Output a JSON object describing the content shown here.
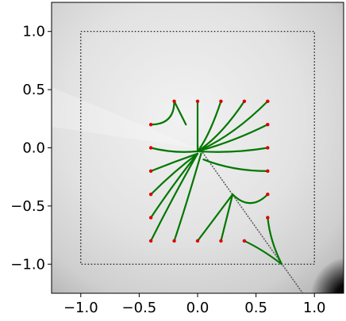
{
  "chart_data": {
    "type": "line",
    "title": "",
    "xlabel": "",
    "ylabel": "",
    "xlim": [
      -1.25,
      1.25
    ],
    "ylim": [
      -1.25,
      1.25
    ],
    "x_ticks": [
      -1.0,
      -0.5,
      0.0,
      0.5,
      1.0
    ],
    "y_ticks": [
      1.0,
      0.5,
      0.0,
      -0.5,
      -1.0
    ],
    "x_tick_labels": [
      "−1.0",
      "−0.5",
      "0.0",
      "0.5",
      "1.0"
    ],
    "y_tick_labels": [
      "1.0",
      "0.5",
      "0.0",
      "−0.5",
      "−1.0"
    ],
    "grid": false,
    "background": "grayscale field (white center fading to black at lower-right)",
    "boundary_box": {
      "x": [
        -1.0,
        1.0
      ],
      "y": [
        -1.0,
        1.0
      ],
      "style": "dotted",
      "color": "#000000"
    },
    "boundary_line": {
      "points": [
        [
          0.0,
          0.02
        ],
        [
          0.9,
          -1.25
        ]
      ],
      "style": "dashed",
      "color": "#555555"
    },
    "start_color": "#dd0000",
    "path_color": "#007700",
    "trajectories": [
      {
        "start": [
          -0.4,
          0.2
        ],
        "path": [
          [
            -0.4,
            0.2
          ],
          [
            -0.2,
            0.2
          ],
          [
            -0.2,
            0.4
          ]
        ]
      },
      {
        "start": [
          -0.2,
          0.4
        ],
        "path": [
          [
            -0.2,
            0.4
          ],
          [
            -0.15,
            0.3
          ],
          [
            -0.1,
            0.2
          ]
        ]
      },
      {
        "start": [
          0.0,
          0.4
        ],
        "path": [
          [
            0.0,
            0.4
          ],
          [
            0.0,
            0.1
          ],
          [
            0.0,
            -0.03
          ]
        ]
      },
      {
        "start": [
          0.2,
          0.4
        ],
        "path": [
          [
            0.2,
            0.4
          ],
          [
            0.1,
            0.1
          ],
          [
            0.0,
            -0.03
          ]
        ]
      },
      {
        "start": [
          0.4,
          0.4
        ],
        "path": [
          [
            0.4,
            0.4
          ],
          [
            0.2,
            0.1
          ],
          [
            0.0,
            -0.03
          ]
        ]
      },
      {
        "start": [
          0.6,
          0.4
        ],
        "path": [
          [
            0.6,
            0.4
          ],
          [
            0.3,
            0.1
          ],
          [
            0.0,
            -0.03
          ]
        ]
      },
      {
        "start": [
          0.6,
          0.2
        ],
        "path": [
          [
            0.6,
            0.2
          ],
          [
            0.3,
            0.05
          ],
          [
            0.0,
            -0.03
          ]
        ]
      },
      {
        "start": [
          0.6,
          0.0
        ],
        "path": [
          [
            0.6,
            0.0
          ],
          [
            0.3,
            -0.05
          ],
          [
            0.0,
            -0.03
          ]
        ]
      },
      {
        "start": [
          0.6,
          -0.2
        ],
        "path": [
          [
            0.6,
            -0.2
          ],
          [
            0.3,
            -0.2
          ],
          [
            0.05,
            -0.1
          ]
        ]
      },
      {
        "start": [
          0.6,
          -0.4
        ],
        "path": [
          [
            0.6,
            -0.4
          ],
          [
            0.45,
            -0.55
          ],
          [
            0.3,
            -0.4
          ]
        ]
      },
      {
        "start": [
          0.6,
          -0.6
        ],
        "path": [
          [
            0.6,
            -0.6
          ],
          [
            0.62,
            -0.8
          ],
          [
            0.72,
            -1.0
          ]
        ]
      },
      {
        "start": [
          0.4,
          -0.8
        ],
        "path": [
          [
            0.4,
            -0.8
          ],
          [
            0.55,
            -0.87
          ],
          [
            0.72,
            -1.0
          ]
        ]
      },
      {
        "start": [
          -0.4,
          0.0
        ],
        "path": [
          [
            -0.4,
            0.0
          ],
          [
            -0.2,
            -0.05
          ],
          [
            0.0,
            -0.03
          ]
        ]
      },
      {
        "start": [
          -0.4,
          -0.2
        ],
        "path": [
          [
            -0.4,
            -0.2
          ],
          [
            -0.2,
            -0.12
          ],
          [
            0.0,
            -0.05
          ]
        ]
      },
      {
        "start": [
          -0.4,
          -0.4
        ],
        "path": [
          [
            -0.4,
            -0.4
          ],
          [
            -0.2,
            -0.2
          ],
          [
            0.0,
            -0.05
          ]
        ]
      },
      {
        "start": [
          -0.4,
          -0.6
        ],
        "path": [
          [
            -0.4,
            -0.6
          ],
          [
            -0.2,
            -0.3
          ],
          [
            0.0,
            -0.05
          ]
        ]
      },
      {
        "start": [
          -0.4,
          -0.8
        ],
        "path": [
          [
            -0.4,
            -0.8
          ],
          [
            -0.2,
            -0.4
          ],
          [
            0.0,
            -0.05
          ]
        ]
      },
      {
        "start": [
          -0.2,
          -0.8
        ],
        "path": [
          [
            -0.2,
            -0.8
          ],
          [
            -0.1,
            -0.5
          ],
          [
            0.03,
            -0.05
          ]
        ]
      },
      {
        "start": [
          0.0,
          -0.8
        ],
        "path": [
          [
            0.0,
            -0.8
          ],
          [
            0.15,
            -0.6
          ],
          [
            0.3,
            -0.4
          ]
        ]
      },
      {
        "start": [
          0.2,
          -0.8
        ],
        "path": [
          [
            0.2,
            -0.8
          ],
          [
            0.25,
            -0.6
          ],
          [
            0.3,
            -0.4
          ]
        ]
      }
    ]
  }
}
